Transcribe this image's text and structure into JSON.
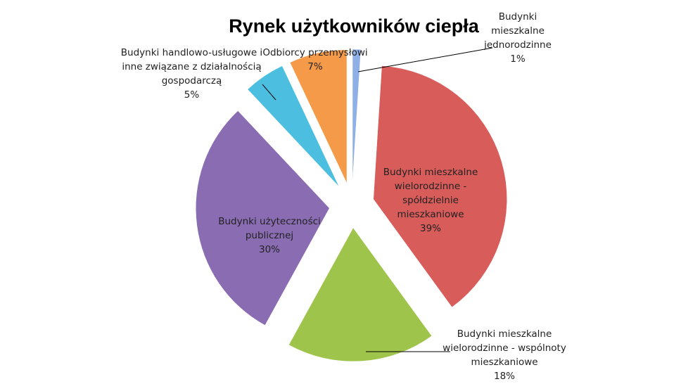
{
  "chart_data": {
    "type": "pie",
    "title": "Rynek użytkowników ciepła",
    "categories": [
      "Budynki mieszkalne jednorodzinne",
      "Budynki mieszkalne wielorodzinne - spółdzielnie mieszkaniowe",
      "Budynki mieszkalne wielorodzinne - wspólnoty mieszkaniowe",
      "Budynki użyteczności publicznej",
      "Budynki handlowo-usługowe i inne związane z działalnością gospodarczą",
      "Odbiorcy przemysłowi"
    ],
    "values": [
      1,
      39,
      18,
      30,
      5,
      7
    ],
    "value_labels": [
      "1%",
      "39%",
      "18%",
      "30%",
      "5%",
      "7%"
    ],
    "colors": [
      "#8fb0e6",
      "#d85c5a",
      "#9fc44c",
      "#8a6cb3",
      "#4cbfe0",
      "#f59a48"
    ]
  }
}
